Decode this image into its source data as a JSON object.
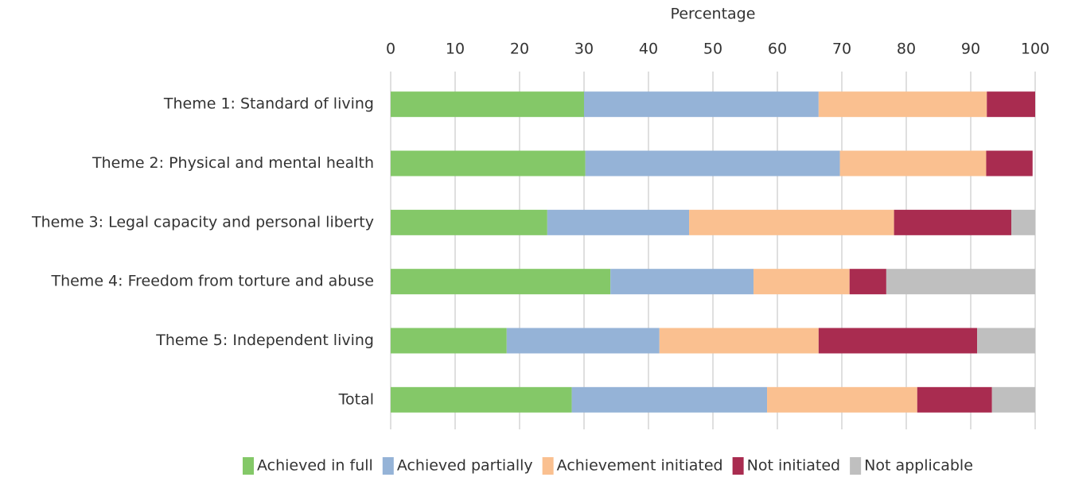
{
  "chart_data": {
    "type": "stacked-bar-horizontal",
    "xlabel": "Percentage",
    "categories": [
      "Theme 1: Standard of living",
      "Theme 2: Physical and mental health",
      "Theme 3: Legal capacity and personal liberty",
      "Theme 4: Freedom from torture and abuse",
      "Theme 5: Independent living",
      "Total"
    ],
    "series": [
      {
        "name": "Achieved in full",
        "color": "#84c868",
        "values": [
          30,
          30.2,
          24.3,
          34.1,
          18,
          28.1
        ]
      },
      {
        "name": "Achieved partially",
        "color": "#95b3d7",
        "values": [
          36.4,
          39.5,
          22,
          22.2,
          23.7,
          30.3
        ]
      },
      {
        "name": "Achievement initiated",
        "color": "#fac090",
        "values": [
          26.1,
          22.7,
          31.8,
          14.9,
          24.7,
          23.3
        ]
      },
      {
        "name": "Not initiated",
        "color": "#a92c50",
        "values": [
          7.5,
          7.2,
          18.2,
          5.7,
          24.6,
          11.6
        ]
      },
      {
        "name": "Not applicable",
        "color": "#bfbfbf",
        "values": [
          0,
          0,
          3.7,
          23.1,
          9,
          6.7
        ]
      }
    ],
    "xlim": [
      0,
      100
    ],
    "xticks": [
      0,
      10,
      20,
      30,
      40,
      50,
      60,
      70,
      80,
      90,
      100
    ],
    "grid": true,
    "legend": "bottom"
  }
}
